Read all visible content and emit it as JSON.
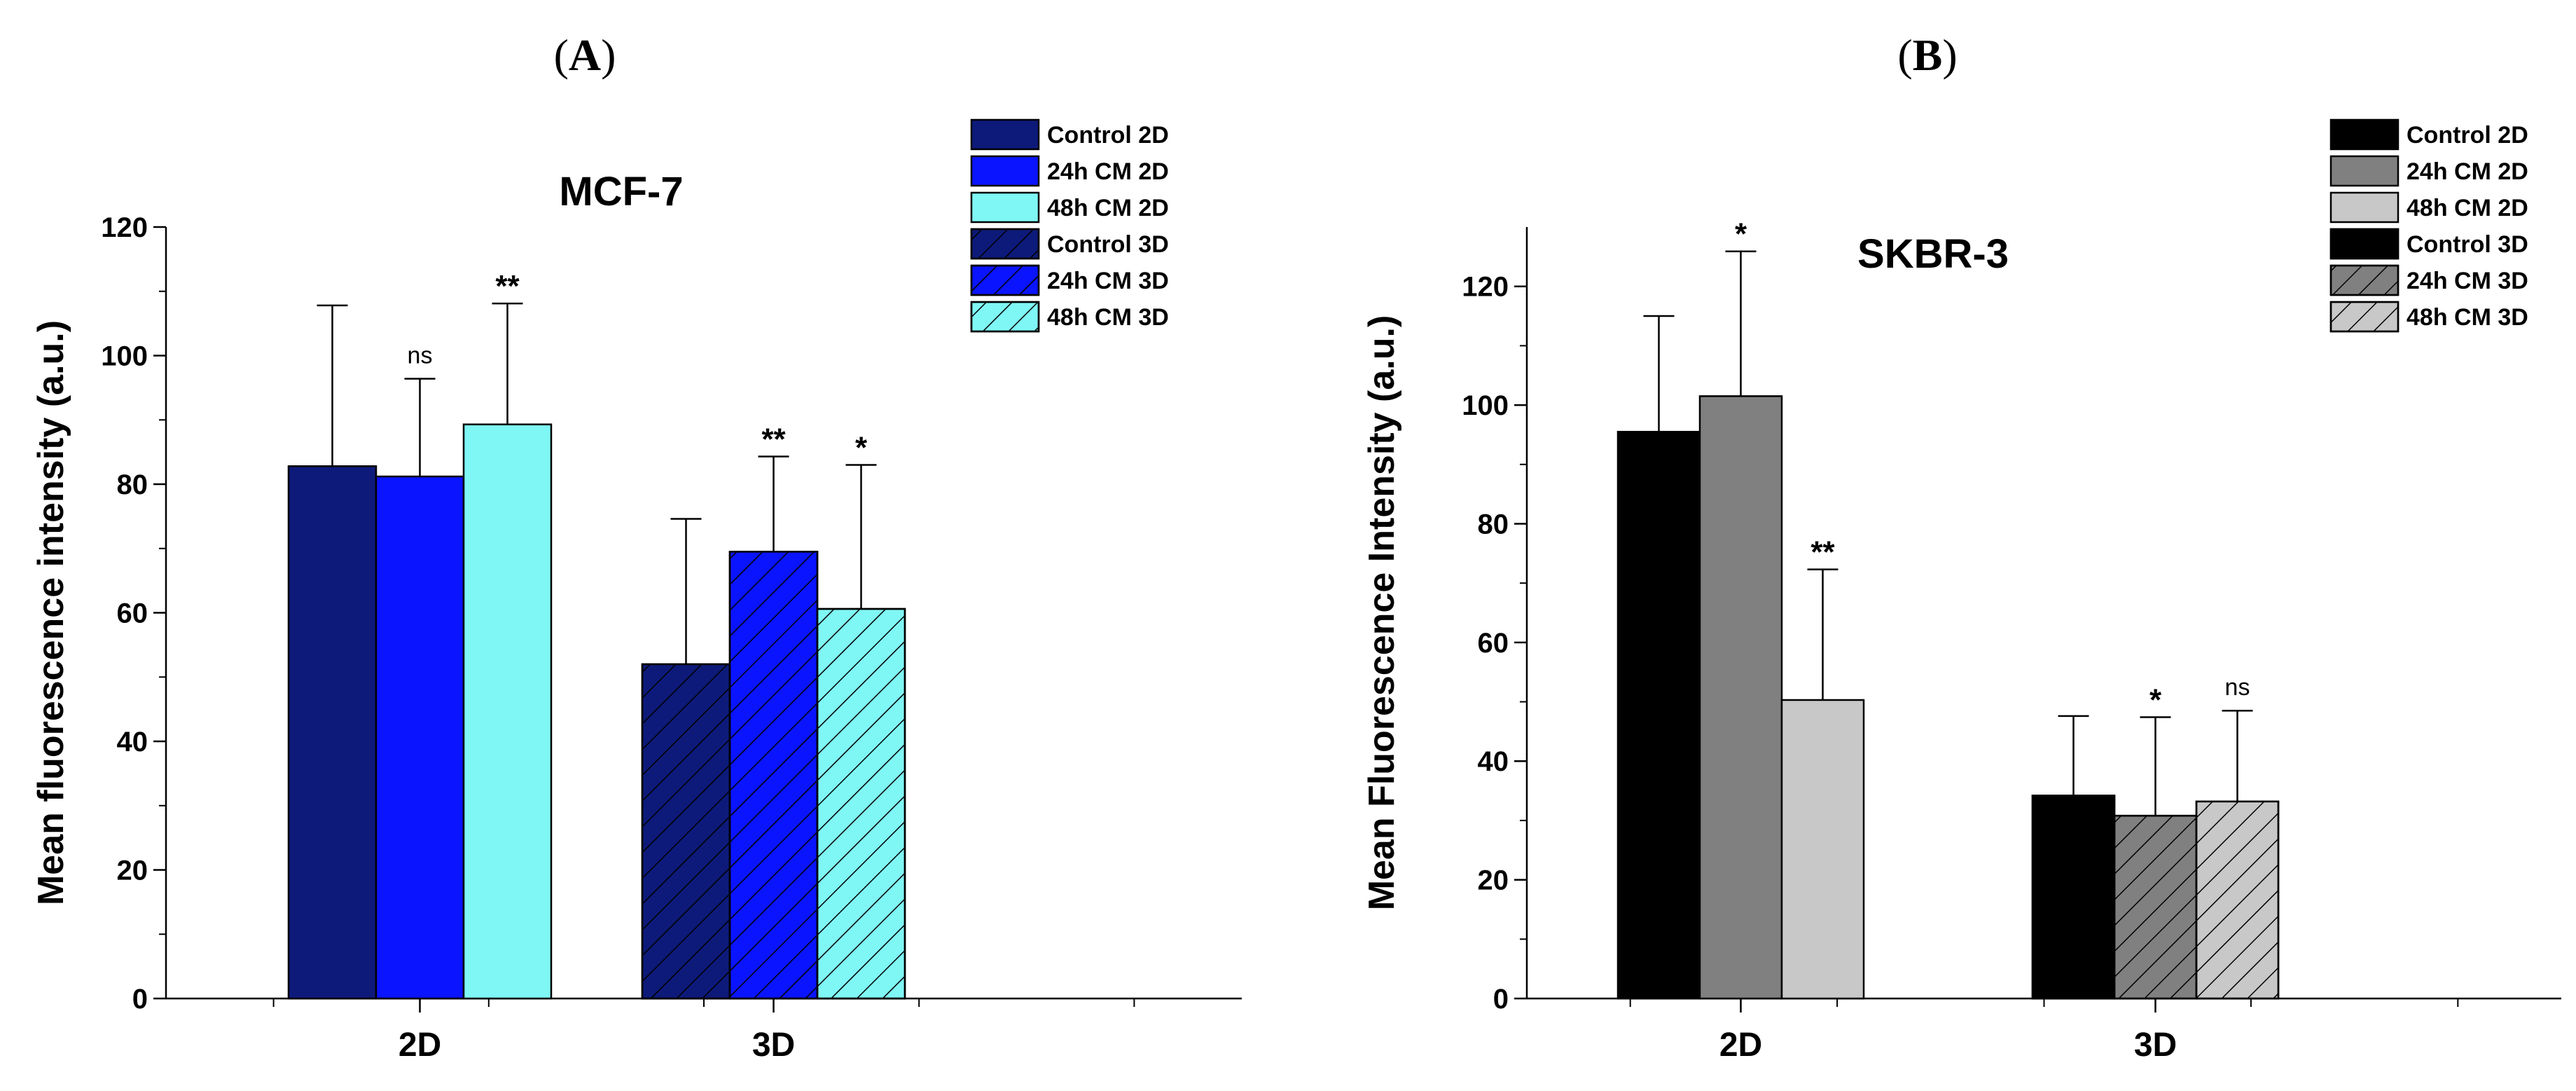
{
  "panels": [
    {
      "label_open": "(",
      "label_letter": "A",
      "label_close": ")",
      "chart_data": {
        "type": "bar",
        "title": "MCF-7",
        "xlabel": "",
        "ylabel": "Mean fluorescence intensity (a.u.)",
        "ylim": [
          0,
          120
        ],
        "yticks": [
          0,
          20,
          40,
          60,
          80,
          100,
          120
        ],
        "categories": [
          "2D",
          "3D"
        ],
        "series": [
          {
            "name": "Control 2D",
            "group": 0,
            "value": 82.8,
            "error": 25.0,
            "fill": "#0d1a7a",
            "hatch": false,
            "sig": ""
          },
          {
            "name": "24h CM 2D",
            "group": 0,
            "value": 81.2,
            "error": 15.2,
            "fill": "#0a14ff",
            "hatch": false,
            "sig": "ns"
          },
          {
            "name": "48h CM 2D",
            "group": 0,
            "value": 89.3,
            "error": 18.8,
            "fill": "#7ff7f5",
            "hatch": false,
            "sig": "**"
          },
          {
            "name": "Control 3D",
            "group": 1,
            "value": 52.0,
            "error": 22.6,
            "fill": "#0d1a7a",
            "hatch": true,
            "sig": ""
          },
          {
            "name": "24h CM 3D",
            "group": 1,
            "value": 69.5,
            "error": 14.8,
            "fill": "#0a14ff",
            "hatch": true,
            "sig": "**"
          },
          {
            "name": "48h CM 3D",
            "group": 1,
            "value": 60.6,
            "error": 22.4,
            "fill": "#7ff7f5",
            "hatch": true,
            "sig": "*"
          }
        ]
      }
    },
    {
      "label_open": "(",
      "label_letter": "B",
      "label_close": ")",
      "chart_data": {
        "type": "bar",
        "title": "SKBR-3",
        "xlabel": "",
        "ylabel": "Mean Fluorescence Intensity (a.u.)",
        "ylim": [
          0,
          130
        ],
        "yticks": [
          0,
          20,
          40,
          60,
          80,
          100,
          120
        ],
        "categories": [
          "2D",
          "3D"
        ],
        "series": [
          {
            "name": "Control 2D",
            "group": 0,
            "value": 95.5,
            "error": 19.5,
            "fill": "#000000",
            "hatch": false,
            "sig": ""
          },
          {
            "name": "24h CM 2D",
            "group": 0,
            "value": 101.5,
            "error": 24.4,
            "fill": "#808080",
            "hatch": false,
            "sig": "*"
          },
          {
            "name": "48h CM 2D",
            "group": 0,
            "value": 50.3,
            "error": 22.0,
            "fill": "#c8c8c8",
            "hatch": false,
            "sig": "**"
          },
          {
            "name": "Control 3D",
            "group": 1,
            "value": 34.2,
            "error": 13.4,
            "fill": "#000000",
            "hatch": true,
            "sig": ""
          },
          {
            "name": "24h CM 3D",
            "group": 1,
            "value": 30.8,
            "error": 16.6,
            "fill": "#808080",
            "hatch": true,
            "sig": "*"
          },
          {
            "name": "48h CM 3D",
            "group": 1,
            "value": 33.2,
            "error": 15.3,
            "fill": "#c8c8c8",
            "hatch": true,
            "sig": "ns"
          }
        ]
      }
    }
  ]
}
